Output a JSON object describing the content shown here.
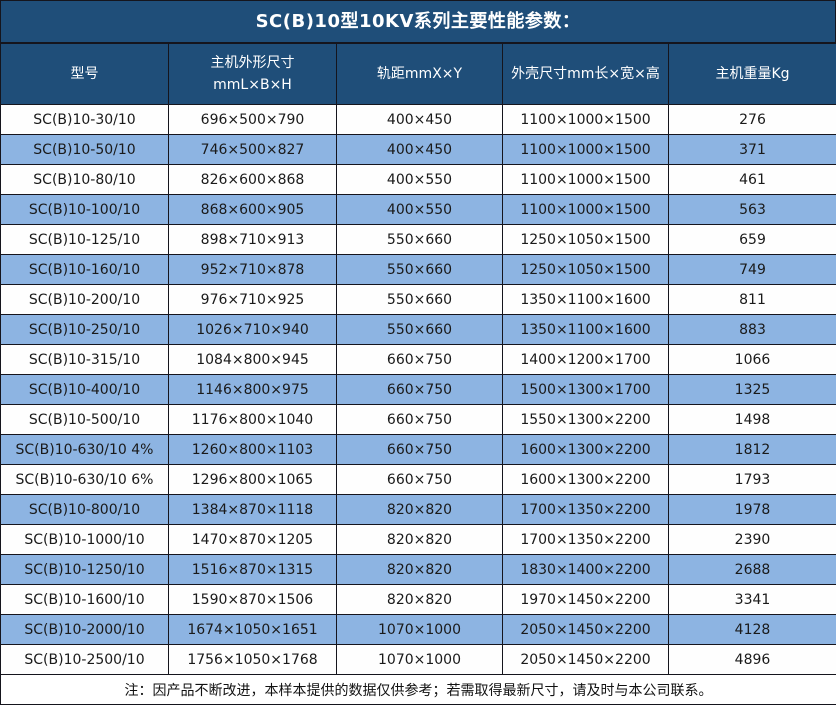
{
  "title": "SC(B)10型10KV系列主要性能参数：",
  "table": {
    "headers": [
      "型号",
      "主机外形尺寸\nmmL×B×H",
      "轨距mmX×Y",
      "外壳尺寸mm长×宽×高",
      "主机重量Kg"
    ],
    "rows": [
      [
        "SC(B)10-30/10",
        "696×500×790",
        "400×450",
        "1100×1000×1500",
        "276"
      ],
      [
        "SC(B)10-50/10",
        "746×500×827",
        "400×450",
        "1100×1000×1500",
        "371"
      ],
      [
        "SC(B)10-80/10",
        "826×600×868",
        "400×550",
        "1100×1000×1500",
        "461"
      ],
      [
        "SC(B)10-100/10",
        "868×600×905",
        "400×550",
        "1100×1000×1500",
        "563"
      ],
      [
        "SC(B)10-125/10",
        "898×710×913",
        "550×660",
        "1250×1050×1500",
        "659"
      ],
      [
        "SC(B)10-160/10",
        "952×710×878",
        "550×660",
        "1250×1050×1500",
        "749"
      ],
      [
        "SC(B)10-200/10",
        "976×710×925",
        "550×660",
        "1350×1100×1600",
        "811"
      ],
      [
        "SC(B)10-250/10",
        "1026×710×940",
        "550×660",
        "1350×1100×1600",
        "883"
      ],
      [
        "SC(B)10-315/10",
        "1084×800×945",
        "660×750",
        "1400×1200×1700",
        "1066"
      ],
      [
        "SC(B)10-400/10",
        "1146×800×975",
        "660×750",
        "1500×1300×1700",
        "1325"
      ],
      [
        "SC(B)10-500/10",
        "1176×800×1040",
        "660×750",
        "1550×1300×2200",
        "1498"
      ],
      [
        "SC(B)10-630/10 4%",
        "1260×800×1103",
        "660×750",
        "1600×1300×2200",
        "1812"
      ],
      [
        "SC(B)10-630/10 6%",
        "1296×800×1065",
        "660×750",
        "1600×1300×2200",
        "1793"
      ],
      [
        "SC(B)10-800/10",
        "1384×870×1118",
        "820×820",
        "1700×1350×2200",
        "1978"
      ],
      [
        "SC(B)10-1000/10",
        "1470×870×1205",
        "820×820",
        "1700×1350×2200",
        "2390"
      ],
      [
        "SC(B)10-1250/10",
        "1516×870×1315",
        "820×820",
        "1830×1400×2200",
        "2688"
      ],
      [
        "SC(B)10-1600/10",
        "1590×870×1506",
        "820×820",
        "1970×1450×2200",
        "3341"
      ],
      [
        "SC(B)10-2000/10",
        "1674×1050×1651",
        "1070×1000",
        "2050×1450×2200",
        "4128"
      ],
      [
        "SC(B)10-2500/10",
        "1756×1050×1768",
        "1070×1000",
        "2050×1450×2200",
        "4896"
      ]
    ]
  },
  "footer_note": "注：因产品不断改进，本样本提供的数据仅供参考；若需取得最新尺寸，请及时与本公司联系。",
  "colors": {
    "header_bg": "#1F4E79",
    "stripe_bg": "#8DB4E2",
    "row_bg": "#FEFEFE",
    "border": "#15151D",
    "header_text": "#FFFFFF",
    "body_text": "#1A1A1A"
  }
}
